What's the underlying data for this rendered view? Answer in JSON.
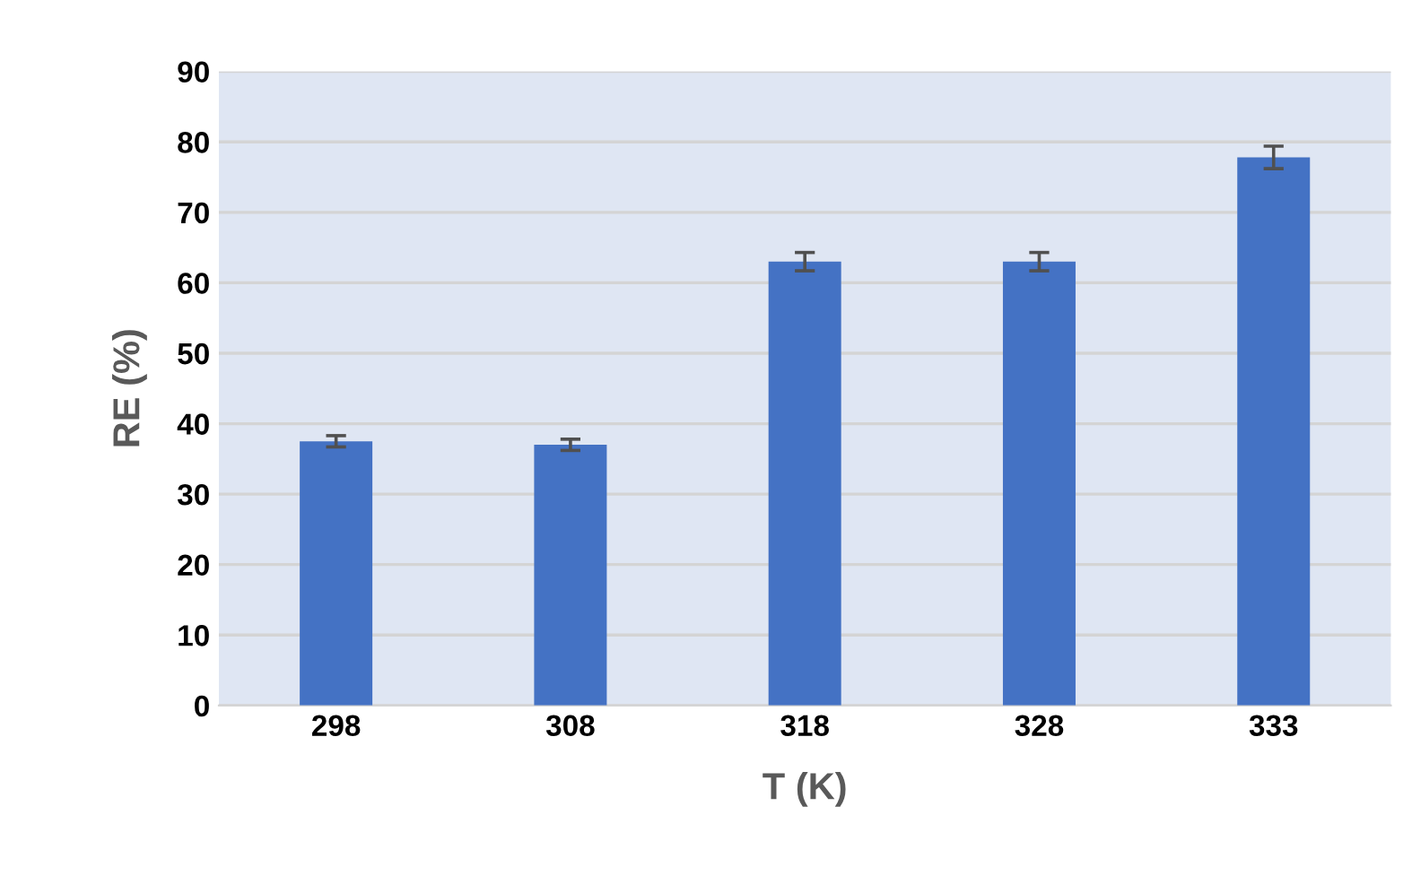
{
  "chart_data": {
    "type": "bar",
    "xlabel": "T (K)",
    "ylabel": "RE (%)",
    "categories": [
      "298",
      "308",
      "318",
      "328",
      "333"
    ],
    "values": [
      37.5,
      37,
      63,
      63,
      77.8
    ],
    "errors": [
      0.8,
      0.8,
      1.3,
      1.3,
      1.6
    ],
    "color": "#4472c4",
    "ylim": [
      0,
      90
    ],
    "yticks": [
      0,
      10,
      20,
      30,
      40,
      50,
      60,
      70,
      80,
      90
    ],
    "grid": "y",
    "legend": false
  }
}
